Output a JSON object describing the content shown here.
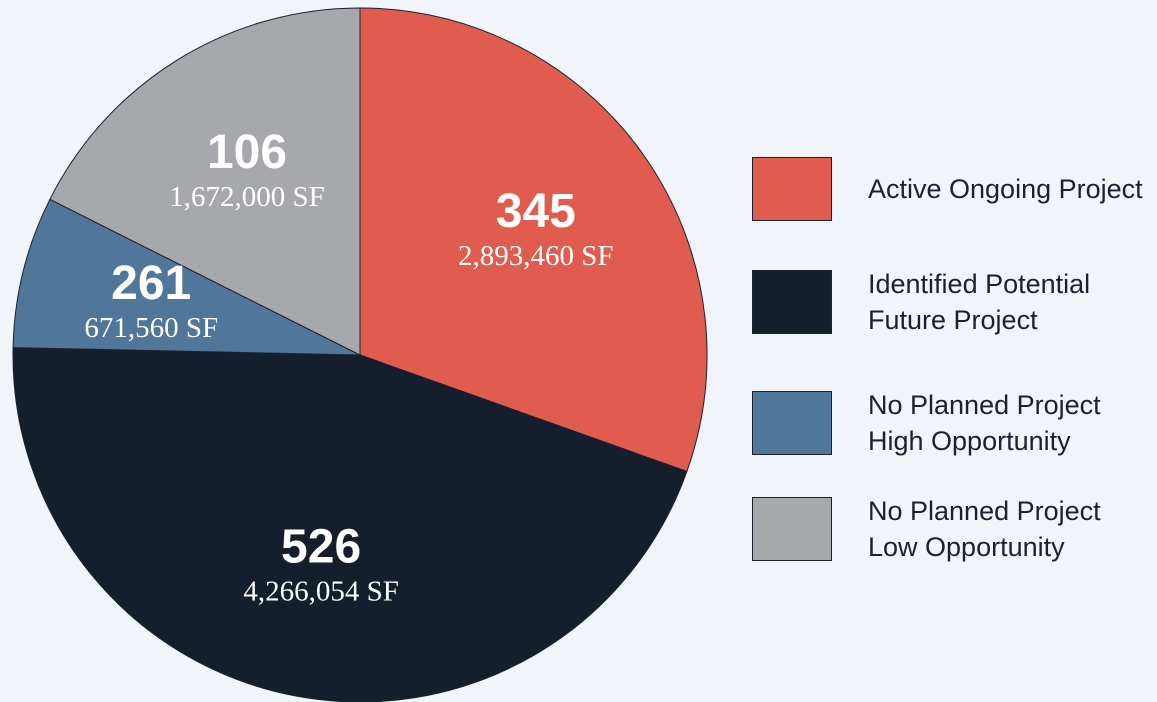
{
  "chart_data": {
    "type": "pie",
    "series": [
      {
        "name": "Active Ongoing Project",
        "color": "#e05c4f",
        "count": 345,
        "values": 2893460,
        "value_labels": "2,893,460 SF"
      },
      {
        "name": "Identified Potential Future Project",
        "color": "#141e2c",
        "count": 526,
        "values": 4266054,
        "value_labels": "4,266,054 SF"
      },
      {
        "name": "No Planned Project High Opportunity",
        "color": "#50769a",
        "count": 261,
        "values": 671560,
        "value_labels": "671,560 SF"
      },
      {
        "name": "No Planned Project Low Opportunity",
        "color": "#a7a8ab",
        "count": 106,
        "values": 1672000,
        "value_labels": "1,672,000 SF"
      }
    ]
  }
}
